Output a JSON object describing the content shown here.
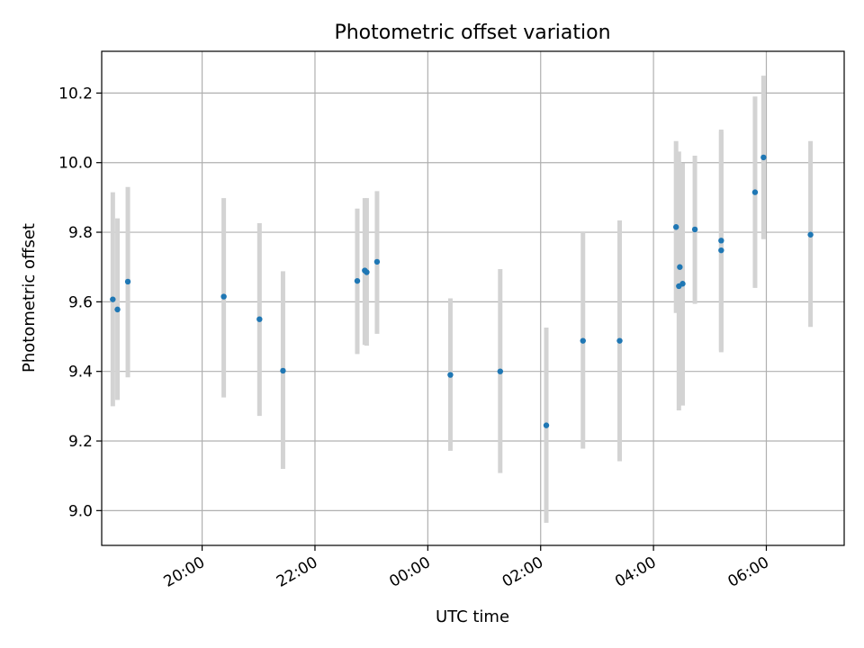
{
  "chart_data": {
    "type": "scatter",
    "title": "Photometric offset variation",
    "xlabel": "UTC time",
    "ylabel": "Photometric offset",
    "x_tick_labels": [
      "20:00",
      "22:00",
      "00:00",
      "02:00",
      "04:00",
      "06:00"
    ],
    "x_tick_hours": [
      20,
      22,
      24,
      26,
      28,
      30
    ],
    "y_ticks": [
      9.0,
      9.2,
      9.4,
      9.6,
      9.8,
      10.0,
      10.2
    ],
    "xlim_hours": [
      18.22,
      31.38
    ],
    "ylim": [
      8.9,
      10.32
    ],
    "grid": true,
    "colors": {
      "point": "#1f77b4",
      "errorbar": "#d3d3d3",
      "grid": "#b0b0b0"
    },
    "points": [
      {
        "time": "18:25",
        "offset": 9.607,
        "err_low": 9.3,
        "err_high": 9.915
      },
      {
        "time": "18:30",
        "offset": 9.578,
        "err_low": 9.318,
        "err_high": 9.84
      },
      {
        "time": "18:41",
        "offset": 9.658,
        "err_low": 9.383,
        "err_high": 9.93
      },
      {
        "time": "20:23",
        "offset": 9.615,
        "err_low": 9.325,
        "err_high": 9.898
      },
      {
        "time": "21:01",
        "offset": 9.55,
        "err_low": 9.272,
        "err_high": 9.826
      },
      {
        "time": "21:26",
        "offset": 9.402,
        "err_low": 9.12,
        "err_high": 9.688
      },
      {
        "time": "22:45",
        "offset": 9.66,
        "err_low": 9.45,
        "err_high": 9.868
      },
      {
        "time": "22:53",
        "offset": 9.69,
        "err_low": 9.476,
        "err_high": 9.898
      },
      {
        "time": "22:55",
        "offset": 9.685,
        "err_low": 9.474,
        "err_high": 9.898
      },
      {
        "time": "23:06",
        "offset": 9.715,
        "err_low": 9.508,
        "err_high": 9.918
      },
      {
        "time": "00:24",
        "offset": 9.39,
        "err_low": 9.172,
        "err_high": 9.61
      },
      {
        "time": "01:17",
        "offset": 9.4,
        "err_low": 9.108,
        "err_high": 9.694
      },
      {
        "time": "02:06",
        "offset": 9.245,
        "err_low": 8.965,
        "err_high": 9.526
      },
      {
        "time": "02:45",
        "offset": 9.488,
        "err_low": 9.178,
        "err_high": 9.8
      },
      {
        "time": "03:24",
        "offset": 9.488,
        "err_low": 9.142,
        "err_high": 9.834
      },
      {
        "time": "04:24",
        "offset": 9.815,
        "err_low": 9.568,
        "err_high": 10.062
      },
      {
        "time": "04:27",
        "offset": 9.645,
        "err_low": 9.288,
        "err_high": 10.032
      },
      {
        "time": "04:28",
        "offset": 9.7,
        "err_low": 9.4,
        "err_high": 10.0
      },
      {
        "time": "04:31",
        "offset": 9.652,
        "err_low": 9.302,
        "err_high": 9.998
      },
      {
        "time": "04:44",
        "offset": 9.808,
        "err_low": 9.594,
        "err_high": 10.02
      },
      {
        "time": "05:12",
        "offset": 9.748,
        "err_low": 9.455,
        "err_high": 10.095
      },
      {
        "time": "05:12",
        "offset": 9.776,
        "err_low": 9.46,
        "err_high": 10.09
      },
      {
        "time": "05:48",
        "offset": 9.915,
        "err_low": 9.64,
        "err_high": 10.19
      },
      {
        "time": "05:57",
        "offset": 10.015,
        "err_low": 9.78,
        "err_high": 10.25
      },
      {
        "time": "06:47",
        "offset": 9.793,
        "err_low": 9.528,
        "err_high": 10.062
      }
    ]
  }
}
